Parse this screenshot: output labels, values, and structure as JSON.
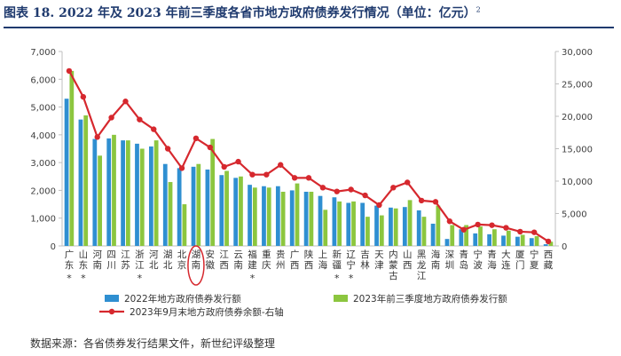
{
  "header": {
    "title": "图表 18. 2022 年及 2023 年前三季度各省市地方政府债券发行情况（单位：亿元）",
    "footnote_mark": "2"
  },
  "footer": {
    "source": "数据来源：各省债券发行结果文件，新世纪评级整理"
  },
  "chart_data": {
    "type": "bar",
    "categories": [
      "广东",
      "山东",
      "河南",
      "四川",
      "江苏",
      "浙江",
      "河北",
      "湖北",
      "北京",
      "湖南",
      "安徽",
      "江西",
      "云南",
      "福建",
      "重庆",
      "贵州",
      "广西",
      "陕西",
      "上海",
      "新疆",
      "辽宁",
      "吉林",
      "天津",
      "内蒙古",
      "山西",
      "黑龙江",
      "海南",
      "深圳",
      "青岛",
      "宁波",
      "青海",
      "大连",
      "厦门",
      "宁夏",
      "西藏"
    ],
    "starred": [
      "广东",
      "山东",
      "浙江",
      "福建",
      "新疆",
      "辽宁"
    ],
    "highlighted": "湖南",
    "series": [
      {
        "name": "2022年地方政府债券发行额",
        "axis": "left",
        "color": "#2f8fd1",
        "values": [
          5300,
          4550,
          3850,
          3870,
          3800,
          3680,
          3580,
          2950,
          2800,
          2850,
          2750,
          2550,
          2450,
          2200,
          2150,
          2150,
          2000,
          1950,
          1800,
          1750,
          1550,
          1550,
          1450,
          1380,
          1400,
          1280,
          800,
          250,
          600,
          450,
          420,
          370,
          330,
          280,
          60
        ]
      },
      {
        "name": "2023年前三季度地方政府债券发行额",
        "axis": "left",
        "color": "#8cc63f",
        "values": [
          6300,
          4700,
          3250,
          4000,
          3800,
          3500,
          3800,
          2300,
          1500,
          2950,
          3850,
          2700,
          2500,
          2100,
          2100,
          1950,
          2250,
          1950,
          1300,
          1600,
          1600,
          1050,
          1100,
          1350,
          1650,
          1050,
          1450,
          750,
          750,
          700,
          600,
          550,
          400,
          350,
          150
        ]
      },
      {
        "name": "2023年9月末地方政府债券余额-右轴",
        "axis": "right",
        "color": "#d6282e",
        "values": [
          27000,
          23000,
          16800,
          19800,
          22300,
          19500,
          18000,
          15000,
          12000,
          16600,
          15200,
          12200,
          13000,
          11000,
          11000,
          12500,
          10500,
          10500,
          9000,
          8400,
          8700,
          7800,
          6300,
          9000,
          9800,
          7000,
          6800,
          3800,
          2500,
          3300,
          3200,
          2800,
          2200,
          2100,
          700
        ]
      }
    ],
    "y_left": {
      "min": 0,
      "max": 7000,
      "ticks": [
        "0",
        "1,000",
        "2,000",
        "3,000",
        "4,000",
        "5,000",
        "6,000",
        "7,000"
      ]
    },
    "y_right": {
      "min": 0,
      "max": 30000,
      "ticks": [
        "0",
        "5,000",
        "10,000",
        "15,000",
        "20,000",
        "25,000",
        "30,000"
      ]
    },
    "legend_position": "bottom",
    "grid": false
  }
}
